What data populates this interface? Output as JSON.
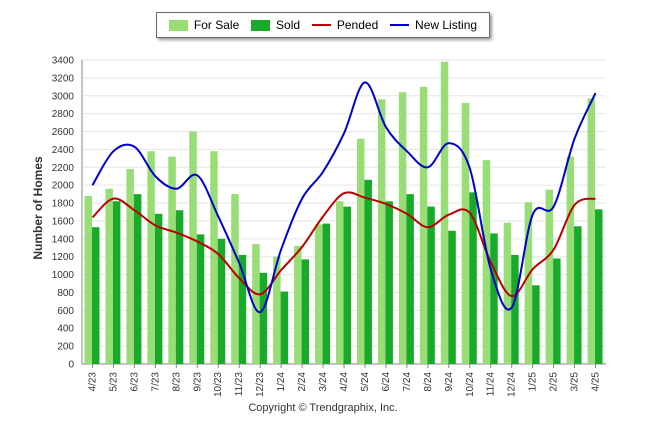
{
  "chart_data": {
    "type": "bar",
    "ylabel": "Number of Homes",
    "xlabel": "",
    "ylim": [
      0,
      3400
    ],
    "yticks": [
      0,
      200,
      400,
      600,
      800,
      1000,
      1200,
      1400,
      1600,
      1800,
      2000,
      2200,
      2400,
      2600,
      2800,
      3000,
      3200,
      3400
    ],
    "grid": true,
    "legend_position": "top-center",
    "categories": [
      "4/23",
      "5/23",
      "6/23",
      "7/23",
      "8/23",
      "9/23",
      "10/23",
      "11/23",
      "12/23",
      "1/24",
      "2/24",
      "3/24",
      "4/24",
      "5/24",
      "6/24",
      "7/24",
      "8/24",
      "9/24",
      "10/24",
      "11/24",
      "12/24",
      "1/25",
      "2/25",
      "3/25",
      "4/25"
    ],
    "series": [
      {
        "name": "For Sale",
        "kind": "bar",
        "color": "#99dd77",
        "values": [
          1880,
          1960,
          2180,
          2380,
          2320,
          2600,
          2380,
          1900,
          1340,
          1200,
          1320,
          1560,
          1820,
          2520,
          2960,
          3040,
          3100,
          3380,
          2920,
          2280,
          1580,
          1810,
          1950,
          2320,
          2970
        ]
      },
      {
        "name": "Sold",
        "kind": "bar",
        "color": "#1aaa2a",
        "values": [
          1530,
          1820,
          1900,
          1680,
          1720,
          1450,
          1400,
          1220,
          1020,
          810,
          1170,
          1570,
          1760,
          2060,
          1820,
          1900,
          1760,
          1490,
          1920,
          1460,
          1220,
          880,
          1180,
          1540,
          1730
        ]
      },
      {
        "name": "Pended",
        "kind": "line",
        "color": "#bb0000",
        "values": [
          1640,
          1850,
          1720,
          1550,
          1470,
          1370,
          1230,
          960,
          780,
          1050,
          1310,
          1650,
          1910,
          1860,
          1790,
          1680,
          1530,
          1670,
          1690,
          1140,
          760,
          1060,
          1280,
          1780,
          1850
        ]
      },
      {
        "name": "New Listing",
        "kind": "line",
        "color": "#0000cc",
        "values": [
          2000,
          2380,
          2430,
          2100,
          1960,
          2110,
          1650,
          1130,
          580,
          1280,
          1850,
          2150,
          2580,
          3150,
          2650,
          2380,
          2200,
          2470,
          2190,
          1060,
          630,
          1670,
          1760,
          2520,
          3030
        ]
      }
    ],
    "footer": "Copyright © Trendgraphix, Inc."
  }
}
